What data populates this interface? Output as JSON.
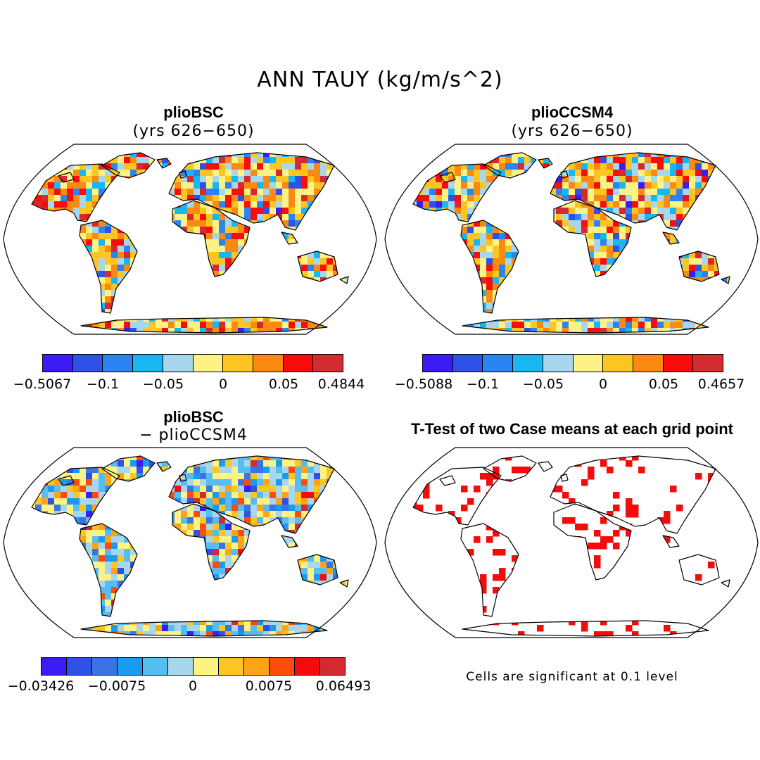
{
  "figure": {
    "title": "ANN TAUY (kg/m/s^2)"
  },
  "panels": [
    {
      "id": "a",
      "title": "plioBSC",
      "subtitle": "(yrs 626−650)"
    },
    {
      "id": "b",
      "title": "plioCCSM4",
      "subtitle": "(yrs 626−650)"
    },
    {
      "id": "c",
      "title": "plioBSC",
      "subtitle": "− plioCCSM4"
    },
    {
      "id": "d",
      "title": "T-Test of two Case means at each grid point",
      "subtitle": ""
    }
  ],
  "colorbars": [
    {
      "colors": [
        "#3c1cf4",
        "#2f52e6",
        "#2a84f2",
        "#19b7f2",
        "#a6d7ee",
        "#fcf286",
        "#fcc522",
        "#fb8a12",
        "#fb0c0c",
        "#d42a30"
      ],
      "ticks": [
        "−0.5067",
        "−0.1",
        "−0.05",
        "0",
        "0.05",
        "0.4844"
      ]
    },
    {
      "colors": [
        "#3c1cf4",
        "#2f52e6",
        "#2a84f2",
        "#19b7f2",
        "#a6d7ee",
        "#fcf286",
        "#fcc522",
        "#fb8a12",
        "#fb0c0c",
        "#d42a30"
      ],
      "ticks": [
        "−0.5088",
        "−0.1",
        "−0.05",
        "0",
        "0.05",
        "0.4657"
      ]
    },
    {
      "colors": [
        "#3c1cf4",
        "#2f52e6",
        "#3a74e2",
        "#1c9af0",
        "#56bdf2",
        "#a6d7ee",
        "#fcf286",
        "#fcc522",
        "#fca418",
        "#fb4c0c",
        "#f40c0c",
        "#d42a30"
      ],
      "ticks": [
        "−0.03426",
        "−0.0075",
        "0",
        "0.0075",
        "0.06493"
      ]
    }
  ],
  "note": "Cells are significant at 0.1 level"
}
